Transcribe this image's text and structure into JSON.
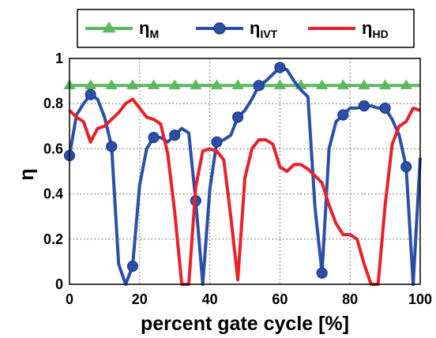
{
  "chart_data": {
    "type": "line",
    "xlabel": "percent gate cycle [%]",
    "ylabel": "η",
    "xlim": [
      0,
      100
    ],
    "ylim": [
      0,
      1
    ],
    "xticks": [
      "0",
      "20",
      "40",
      "60",
      "80",
      "100"
    ],
    "yticks": [
      "0",
      "0.2",
      "0.4",
      "0.6",
      "0.8",
      "1"
    ],
    "grid": true,
    "legend_position": "top",
    "series": [
      {
        "name": "η",
        "name_sub": "M",
        "color": "#5cb85c",
        "marker": "triangle",
        "x": [
          0,
          6,
          12,
          18,
          24,
          30,
          36,
          42,
          48,
          54,
          60,
          66,
          72,
          78,
          84,
          90,
          96,
          100
        ],
        "y": [
          0.88,
          0.88,
          0.88,
          0.88,
          0.88,
          0.88,
          0.88,
          0.88,
          0.88,
          0.88,
          0.88,
          0.88,
          0.88,
          0.88,
          0.88,
          0.88,
          0.88,
          0.88
        ],
        "marker_x": [
          0,
          6,
          12,
          18,
          24,
          30,
          36,
          42,
          48,
          54,
          60,
          66,
          72,
          78,
          84,
          90,
          96
        ]
      },
      {
        "name": "η",
        "name_sub": "IVT",
        "color": "#2b4fa8",
        "marker": "circle",
        "x": [
          0,
          2,
          4,
          6,
          8,
          10,
          12,
          14,
          16,
          18,
          20,
          22,
          24,
          26,
          28,
          30,
          32,
          34,
          36,
          38,
          40,
          42,
          44,
          46,
          48,
          50,
          52,
          54,
          56,
          58,
          60,
          62,
          64,
          66,
          68,
          70,
          72,
          74,
          76,
          78,
          80,
          82,
          84,
          86,
          88,
          90,
          92,
          94,
          96,
          98,
          100
        ],
        "y": [
          0.57,
          0.75,
          0.8,
          0.84,
          0.82,
          0.74,
          0.61,
          0.09,
          0.0,
          0.08,
          0.44,
          0.6,
          0.65,
          0.65,
          0.63,
          0.66,
          0.69,
          0.67,
          0.37,
          0.0,
          0.42,
          0.63,
          0.64,
          0.66,
          0.74,
          0.77,
          0.82,
          0.88,
          0.9,
          0.93,
          0.96,
          0.95,
          0.9,
          0.86,
          0.83,
          0.34,
          0.05,
          0.6,
          0.72,
          0.75,
          0.78,
          0.78,
          0.79,
          0.79,
          0.78,
          0.78,
          0.73,
          0.66,
          0.52,
          0.0,
          0.56
        ],
        "marker_x": [
          0,
          6,
          12,
          18,
          24,
          30,
          36,
          42,
          48,
          54,
          60,
          72,
          78,
          84,
          90,
          96
        ]
      },
      {
        "name": "η",
        "name_sub": "HD",
        "color": "#e8202a",
        "marker": "none",
        "x": [
          0,
          2,
          4,
          6,
          8,
          10,
          12,
          14,
          16,
          18,
          20,
          22,
          24,
          26,
          28,
          30,
          32,
          34,
          36,
          38,
          40,
          42,
          44,
          46,
          48,
          50,
          52,
          54,
          56,
          58,
          60,
          62,
          64,
          66,
          68,
          70,
          72,
          74,
          76,
          78,
          80,
          82,
          84,
          86,
          88,
          90,
          92,
          94,
          96,
          98,
          100
        ],
        "y": [
          0.77,
          0.74,
          0.72,
          0.63,
          0.69,
          0.7,
          0.73,
          0.76,
          0.8,
          0.82,
          0.78,
          0.74,
          0.73,
          0.71,
          0.58,
          0.32,
          0.0,
          0.0,
          0.43,
          0.59,
          0.6,
          0.59,
          0.55,
          0.3,
          0.02,
          0.47,
          0.6,
          0.64,
          0.64,
          0.62,
          0.52,
          0.5,
          0.53,
          0.53,
          0.51,
          0.48,
          0.45,
          0.35,
          0.27,
          0.22,
          0.22,
          0.2,
          0.09,
          0.0,
          0.0,
          0.35,
          0.62,
          0.7,
          0.72,
          0.78,
          0.77
        ]
      }
    ]
  }
}
